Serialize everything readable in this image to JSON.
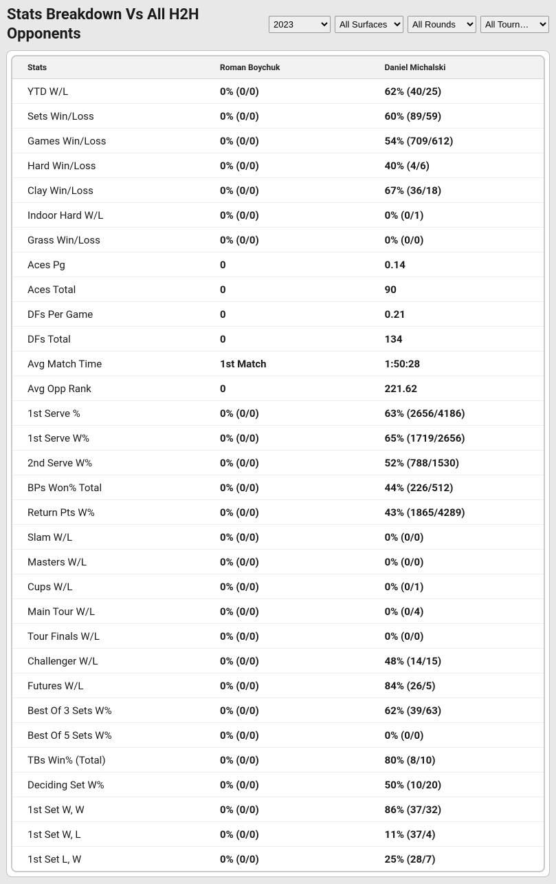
{
  "title": "Stats Breakdown Vs All H2H Opponents",
  "filters": {
    "year": {
      "value": "2023",
      "options": [
        "2023"
      ]
    },
    "surface": {
      "value": "All Surfaces",
      "options": [
        "All Surfaces"
      ]
    },
    "round": {
      "value": "All Rounds",
      "options": [
        "All Rounds"
      ]
    },
    "tourn": {
      "value": "All Tourn…",
      "options": [
        "All Tourn…"
      ]
    }
  },
  "columns": [
    "Stats",
    "Roman Boychuk",
    "Daniel Michalski"
  ],
  "rows": [
    {
      "stat": "YTD W/L",
      "p1": "0% (0/0)",
      "p2": "62% (40/25)"
    },
    {
      "stat": "Sets Win/Loss",
      "p1": "0% (0/0)",
      "p2": "60% (89/59)"
    },
    {
      "stat": "Games Win/Loss",
      "p1": "0% (0/0)",
      "p2": "54% (709/612)"
    },
    {
      "stat": "Hard Win/Loss",
      "p1": "0% (0/0)",
      "p2": "40% (4/6)"
    },
    {
      "stat": "Clay Win/Loss",
      "p1": "0% (0/0)",
      "p2": "67% (36/18)"
    },
    {
      "stat": "Indoor Hard W/L",
      "p1": "0% (0/0)",
      "p2": "0% (0/1)"
    },
    {
      "stat": "Grass Win/Loss",
      "p1": "0% (0/0)",
      "p2": "0% (0/0)"
    },
    {
      "stat": "Aces Pg",
      "p1": "0",
      "p2": "0.14"
    },
    {
      "stat": "Aces Total",
      "p1": "0",
      "p2": "90"
    },
    {
      "stat": "DFs Per Game",
      "p1": "0",
      "p2": "0.21"
    },
    {
      "stat": "DFs Total",
      "p1": "0",
      "p2": "134"
    },
    {
      "stat": "Avg Match Time",
      "p1": "1st Match",
      "p2": "1:50:28"
    },
    {
      "stat": "Avg Opp Rank",
      "p1": "0",
      "p2": "221.62"
    },
    {
      "stat": "1st Serve %",
      "p1": "0% (0/0)",
      "p2": "63% (2656/4186)"
    },
    {
      "stat": "1st Serve W%",
      "p1": "0% (0/0)",
      "p2": "65% (1719/2656)"
    },
    {
      "stat": "2nd Serve W%",
      "p1": "0% (0/0)",
      "p2": "52% (788/1530)"
    },
    {
      "stat": "BPs Won% Total",
      "p1": "0% (0/0)",
      "p2": "44% (226/512)"
    },
    {
      "stat": "Return Pts W%",
      "p1": "0% (0/0)",
      "p2": "43% (1865/4289)"
    },
    {
      "stat": "Slam W/L",
      "p1": "0% (0/0)",
      "p2": "0% (0/0)"
    },
    {
      "stat": "Masters W/L",
      "p1": "0% (0/0)",
      "p2": "0% (0/0)"
    },
    {
      "stat": "Cups W/L",
      "p1": "0% (0/0)",
      "p2": "0% (0/1)"
    },
    {
      "stat": "Main Tour W/L",
      "p1": "0% (0/0)",
      "p2": "0% (0/4)"
    },
    {
      "stat": "Tour Finals W/L",
      "p1": "0% (0/0)",
      "p2": "0% (0/0)"
    },
    {
      "stat": "Challenger W/L",
      "p1": "0% (0/0)",
      "p2": "48% (14/15)"
    },
    {
      "stat": "Futures W/L",
      "p1": "0% (0/0)",
      "p2": "84% (26/5)"
    },
    {
      "stat": "Best Of 3 Sets W%",
      "p1": "0% (0/0)",
      "p2": "62% (39/63)"
    },
    {
      "stat": "Best Of 5 Sets W%",
      "p1": "0% (0/0)",
      "p2": "0% (0/0)"
    },
    {
      "stat": "TBs Win% (Total)",
      "p1": "0% (0/0)",
      "p2": "80% (8/10)"
    },
    {
      "stat": "Deciding Set W%",
      "p1": "0% (0/0)",
      "p2": "50% (10/20)"
    },
    {
      "stat": "1st Set W, W",
      "p1": "0% (0/0)",
      "p2": "86% (37/32)"
    },
    {
      "stat": "1st Set W, L",
      "p1": "0% (0/0)",
      "p2": "11% (37/4)"
    },
    {
      "stat": "1st Set L, W",
      "p1": "0% (0/0)",
      "p2": "25% (28/7)"
    }
  ]
}
